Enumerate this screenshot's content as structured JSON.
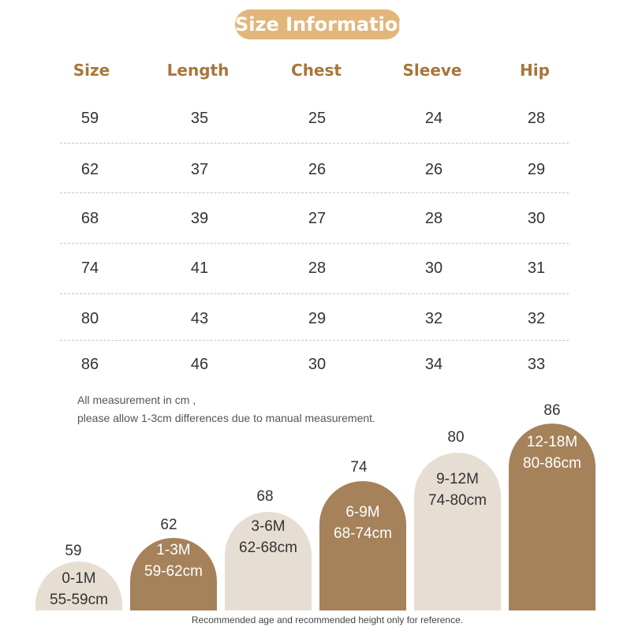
{
  "title": "Size Information",
  "table": {
    "headers": [
      "Size",
      "Length",
      "Chest",
      "Sleeve",
      "Hip"
    ],
    "rows": [
      [
        "59",
        "35",
        "25",
        "24",
        "28"
      ],
      [
        "62",
        "37",
        "26",
        "26",
        "29"
      ],
      [
        "68",
        "39",
        "27",
        "28",
        "30"
      ],
      [
        "74",
        "41",
        "28",
        "30",
        "31"
      ],
      [
        "80",
        "43",
        "29",
        "32",
        "32"
      ],
      [
        "86",
        "46",
        "30",
        "34",
        "33"
      ]
    ]
  },
  "notes": {
    "line1": "All measurement in cm ,",
    "line2": "please allow 1-3cm differences due to manual measurement."
  },
  "size_guide": [
    {
      "size": "59",
      "age": "0-1M",
      "height": "55-59cm",
      "style": "light"
    },
    {
      "size": "62",
      "age": "1-3M",
      "height": "59-62cm",
      "style": "dark"
    },
    {
      "size": "68",
      "age": "3-6M",
      "height": "62-68cm",
      "style": "light"
    },
    {
      "size": "74",
      "age": "6-9M",
      "height": "68-74cm",
      "style": "dark"
    },
    {
      "size": "80",
      "age": "9-12M",
      "height": "74-80cm",
      "style": "light"
    },
    {
      "size": "86",
      "age": "12-18M",
      "height": "80-86cm",
      "style": "dark"
    }
  ],
  "footer": "Recommended age and recommended height only for reference.",
  "colors": {
    "title_pill": "#e2b67a",
    "header_text": "#a8763a",
    "arch_light": "#e7ded3",
    "arch_dark": "#a5825a"
  }
}
